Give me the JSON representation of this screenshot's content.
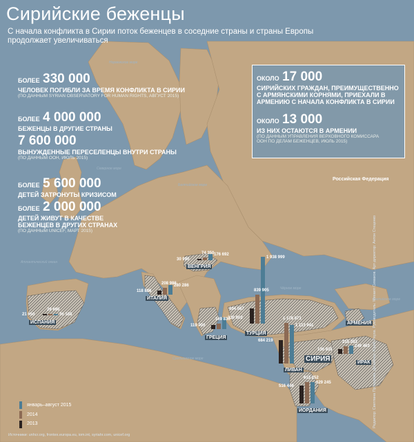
{
  "title": "Сирийские беженцы",
  "subtitle": "С начала конфликта в Сирии поток беженцев в соседние страны и страны Европы продолжает увеличиваться",
  "stats": {
    "killed": {
      "pre": "более",
      "value": "330 000",
      "desc": "человек погибли за время конфликта в Сирии",
      "src": "(по данным Syrian Observatory for Human Rights, август 2015)"
    },
    "refugees": {
      "pre": "более",
      "value": "4 000 000",
      "desc": "беженцы в другие страны"
    },
    "displaced": {
      "value": "7 600 000",
      "desc": "вынужденные переселенцы внутри страны",
      "src": "(по данным ООН, июль 2015)"
    },
    "children": {
      "pre": "более",
      "value": "5 600 000",
      "desc": "детей затронуты кризисом"
    },
    "children_ref": {
      "pre": "более",
      "value": "2 000 000",
      "desc": "детей живут в качестве беженцев в других странах",
      "src": "(по данным UNICEF, март 2015)"
    }
  },
  "armenia_box": {
    "pre1": "около",
    "value1": "17 000",
    "desc1": "сирийских граждан, преимущественно с армянскими корнями, приехали в Армению с начала конфликта в Сирии",
    "pre2": "около",
    "value2": "13 000",
    "desc2": "из них остаются в Армении",
    "src": "(по данным Управления Верховного комиссара ООН по делам беженцев, июль 2015)"
  },
  "russia_label": "Российская Федерация",
  "countries": {
    "spain": "Испания",
    "italy": "Италия",
    "hungary": "Венгрия",
    "greece": "Греция",
    "turkey": "Турция",
    "lebanon": "Ливан",
    "syria": "Сирия",
    "armenia": "Армения",
    "iraq": "Ирак",
    "jordan": "Иордания"
  },
  "seas": {
    "norwegian": "Норвежское море",
    "north": "Северное море",
    "baltic": "Балтийское море",
    "atlantic": "Атлантический океан",
    "med": "Средиземное море",
    "black": "Чёрное море",
    "caspian": "Каспийское море"
  },
  "legend": [
    "январь–август 2015",
    "2014",
    "2013"
  ],
  "colors": {
    "y2015": "#4d7d95",
    "y2014": "#8c6a54",
    "y2013": "#2b2220"
  },
  "chart_data": {
    "type": "bar",
    "series_names": [
      "2013",
      "2014",
      "январь–август 2015"
    ],
    "countries": [
      {
        "name": "Испания",
        "values": {
          "2013": 21650,
          "2014": 29690,
          "2015": 36180
        }
      },
      {
        "name": "Италия",
        "values": {
          "2013": 118886,
          "2014": 208986,
          "2015": 280286
        }
      },
      {
        "name": "Венгрия",
        "values": {
          "2013": 30990,
          "2014": 74350,
          "2015": 176692
        }
      },
      {
        "name": "Греция",
        "values": {
          "2013": 119000,
          "2014": 169830,
          "2015": 330002
        }
      },
      {
        "name": "Турция",
        "values": {
          "2013": 434567,
          "2014": 839905,
          "2015": 1938999
        }
      },
      {
        "name": "Ливан",
        "values": {
          "2013": 684219,
          "2014": 1176971,
          "2015": 1113941
        }
      },
      {
        "name": "Ирак",
        "values": {
          "2013": 136935,
          "2014": 215303,
          "2015": 249463
        }
      },
      {
        "name": "Иордания",
        "values": {
          "2013": 516449,
          "2014": 613252,
          "2015": 629245
        }
      }
    ]
  },
  "labels": {
    "spain": [
      "29 690",
      "21 650",
      "36 180"
    ],
    "italy": [
      "208 986",
      "118 886",
      "280 286"
    ],
    "hungary": [
      "74 350",
      "30 990",
      "176 692"
    ],
    "greece": [
      "169 830",
      "119 000",
      "330 002"
    ],
    "turkey": [
      "839 905",
      "434 567",
      "1 938 999"
    ],
    "lebanon": [
      "1 176 971",
      "684 219",
      "1 113 941"
    ],
    "iraq": [
      "215 303",
      "136 935",
      "249 463"
    ],
    "jordan": [
      "613 252",
      "516 449",
      "629 245"
    ]
  },
  "sources": "Источники: unhcr.org, frontex.europa.eu, iom.int, syriahr.com, unicef.org",
  "credits": "Редактор: Светлана Прохорова. Дизайнер: Юрий Реуха. Руководитель: Михаил Симаков. Арт-директор: Антон Стеценко"
}
